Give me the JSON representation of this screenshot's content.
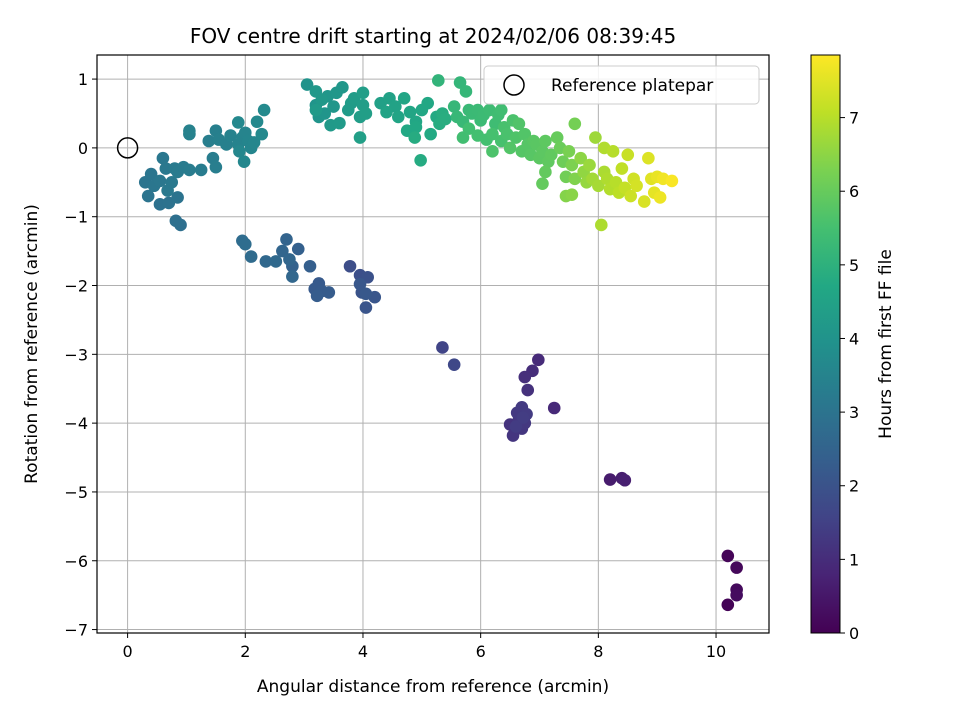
{
  "chart_data": {
    "type": "scatter",
    "title": "FOV centre drift starting at 2024/02/06 08:39:45",
    "xlabel": "Angular distance from reference (arcmin)",
    "ylabel": "Rotation from reference (arcmin)",
    "xlim": [
      -0.52,
      10.9
    ],
    "ylim": [
      -7.05,
      1.35
    ],
    "xticks": [
      0,
      2,
      4,
      6,
      8,
      10
    ],
    "yticks": [
      -7,
      -6,
      -5,
      -4,
      -3,
      -2,
      -1,
      0,
      1
    ],
    "grid": true,
    "legend": {
      "position": "top-right",
      "entries": [
        "Reference platepar"
      ]
    },
    "reference_point": {
      "x": 0,
      "y": 0
    },
    "colorbar": {
      "label": "Hours from first FF file",
      "range": [
        0,
        7.85
      ],
      "ticks": [
        0,
        1,
        2,
        3,
        4,
        5,
        6,
        7
      ],
      "colormap": "viridis"
    },
    "series": [
      {
        "points": [
          [
            10.2,
            -6.64,
            0.05
          ],
          [
            10.2,
            -5.93,
            0.1
          ],
          [
            10.35,
            -6.1,
            0.15
          ],
          [
            10.35,
            -6.42,
            0.2
          ],
          [
            10.35,
            -6.5,
            0.25
          ],
          [
            8.2,
            -4.82,
            0.6
          ],
          [
            8.4,
            -4.8,
            0.65
          ],
          [
            8.45,
            -4.83,
            0.7
          ],
          [
            7.25,
            -3.78,
            0.9
          ],
          [
            6.98,
            -3.08,
            0.95
          ],
          [
            6.88,
            -3.24,
            1.0
          ],
          [
            6.75,
            -3.33,
            1.05
          ],
          [
            6.8,
            -3.52,
            1.1
          ],
          [
            6.5,
            -4.02,
            1.15
          ],
          [
            6.55,
            -4.18,
            1.2
          ],
          [
            6.7,
            -4.08,
            1.22
          ],
          [
            6.65,
            -3.95,
            1.25
          ],
          [
            6.75,
            -4.0,
            1.28
          ],
          [
            6.62,
            -3.85,
            1.3
          ],
          [
            6.7,
            -3.77,
            1.32
          ],
          [
            6.78,
            -3.87,
            1.35
          ],
          [
            6.6,
            -4.05,
            1.38
          ],
          [
            6.72,
            -3.92,
            1.4
          ],
          [
            5.35,
            -2.9,
            1.6
          ],
          [
            5.55,
            -3.15,
            1.7
          ],
          [
            3.78,
            -1.72,
            1.85
          ],
          [
            3.95,
            -1.85,
            1.9
          ],
          [
            4.08,
            -1.88,
            1.95
          ],
          [
            3.98,
            -2.1,
            2.0
          ],
          [
            4.05,
            -2.32,
            2.05
          ],
          [
            4.2,
            -2.17,
            2.1
          ],
          [
            3.95,
            -1.98,
            2.12
          ],
          [
            4.05,
            -2.12,
            2.15
          ],
          [
            3.18,
            -2.05,
            2.2
          ],
          [
            3.25,
            -1.97,
            2.22
          ],
          [
            3.3,
            -2.08,
            2.25
          ],
          [
            3.42,
            -2.1,
            2.28
          ],
          [
            3.22,
            -2.15,
            2.3
          ],
          [
            3.1,
            -1.72,
            2.35
          ],
          [
            2.9,
            -1.47,
            2.4
          ],
          [
            2.8,
            -1.72,
            2.45
          ],
          [
            2.7,
            -1.33,
            2.5
          ],
          [
            2.63,
            -1.5,
            2.55
          ],
          [
            2.75,
            -1.62,
            2.58
          ],
          [
            2.8,
            -1.87,
            2.6
          ],
          [
            2.35,
            -1.65,
            2.65
          ],
          [
            2.52,
            -1.65,
            2.68
          ],
          [
            2.1,
            -1.58,
            2.72
          ],
          [
            1.95,
            -1.35,
            2.75
          ],
          [
            2.0,
            -1.4,
            2.78
          ],
          [
            0.9,
            -1.12,
            2.85
          ],
          [
            0.82,
            -1.06,
            2.88
          ],
          [
            0.55,
            -0.82,
            2.92
          ],
          [
            0.7,
            -0.8,
            2.95
          ],
          [
            0.85,
            -0.72,
            2.98
          ],
          [
            0.3,
            -0.5,
            3.0
          ],
          [
            0.35,
            -0.7,
            3.02
          ],
          [
            0.4,
            -0.38,
            3.05
          ],
          [
            0.45,
            -0.55,
            3.08
          ],
          [
            0.55,
            -0.48,
            3.1
          ],
          [
            0.6,
            -0.15,
            3.12
          ],
          [
            0.65,
            -0.3,
            3.14
          ],
          [
            0.68,
            -0.62,
            3.16
          ],
          [
            0.75,
            -0.5,
            3.18
          ],
          [
            0.8,
            -0.3,
            3.2
          ],
          [
            0.85,
            -0.35,
            3.22
          ],
          [
            0.95,
            -0.28,
            3.24
          ],
          [
            1.05,
            -0.32,
            3.26
          ],
          [
            1.25,
            -0.32,
            3.28
          ],
          [
            1.45,
            -0.15,
            3.3
          ],
          [
            1.5,
            -0.28,
            3.32
          ],
          [
            1.38,
            0.1,
            3.34
          ],
          [
            1.5,
            0.25,
            3.36
          ],
          [
            1.55,
            0.12,
            3.38
          ],
          [
            1.68,
            0.05,
            3.4
          ],
          [
            1.05,
            0.2,
            3.42
          ],
          [
            1.05,
            0.25,
            3.44
          ],
          [
            1.75,
            0.18,
            3.46
          ],
          [
            1.88,
            0.05,
            3.48
          ],
          [
            1.95,
            0.15,
            3.5
          ],
          [
            2.0,
            0.22,
            3.52
          ],
          [
            2.05,
            0.1,
            3.54
          ],
          [
            2.1,
            0.0,
            3.56
          ],
          [
            2.15,
            0.08,
            3.58
          ],
          [
            1.9,
            -0.05,
            3.6
          ],
          [
            1.98,
            -0.2,
            3.62
          ],
          [
            1.88,
            0.37,
            3.64
          ],
          [
            2.2,
            0.38,
            3.66
          ],
          [
            2.28,
            0.2,
            3.68
          ],
          [
            2.32,
            0.55,
            3.7
          ],
          [
            3.05,
            0.92,
            4.0
          ],
          [
            3.2,
            0.62,
            4.02
          ],
          [
            3.25,
            0.45,
            4.04
          ],
          [
            3.35,
            0.5,
            4.06
          ],
          [
            3.4,
            0.75,
            4.08
          ],
          [
            3.5,
            0.6,
            4.1
          ],
          [
            3.55,
            0.8,
            4.12
          ],
          [
            3.65,
            0.88,
            4.14
          ],
          [
            3.2,
            0.82,
            4.16
          ],
          [
            3.3,
            0.7,
            4.18
          ],
          [
            3.45,
            0.33,
            4.2
          ],
          [
            3.2,
            0.55,
            4.22
          ],
          [
            3.6,
            0.36,
            4.24
          ],
          [
            3.75,
            0.55,
            4.26
          ],
          [
            3.8,
            0.65,
            4.28
          ],
          [
            3.85,
            0.72,
            4.3
          ],
          [
            3.95,
            0.45,
            4.32
          ],
          [
            4.0,
            0.62,
            4.34
          ],
          [
            4.0,
            0.8,
            4.36
          ],
          [
            4.05,
            0.5,
            4.38
          ],
          [
            3.95,
            0.15,
            4.4
          ],
          [
            4.3,
            0.65,
            4.44
          ],
          [
            4.45,
            0.72,
            4.48
          ],
          [
            4.55,
            0.6,
            4.52
          ],
          [
            4.4,
            0.52,
            4.55
          ],
          [
            4.6,
            0.45,
            4.58
          ],
          [
            4.7,
            0.72,
            4.6
          ],
          [
            4.8,
            0.52,
            4.62
          ],
          [
            4.9,
            0.38,
            4.64
          ],
          [
            5.0,
            0.55,
            4.66
          ],
          [
            5.1,
            0.65,
            4.68
          ],
          [
            4.75,
            0.25,
            4.7
          ],
          [
            4.9,
            0.3,
            4.72
          ],
          [
            5.15,
            0.2,
            4.74
          ],
          [
            5.25,
            0.45,
            4.76
          ],
          [
            4.98,
            -0.18,
            4.8
          ],
          [
            4.88,
            0.15,
            4.82
          ],
          [
            5.3,
            0.35,
            4.84
          ],
          [
            5.35,
            0.5,
            4.86
          ],
          [
            5.4,
            0.42,
            4.88
          ],
          [
            5.28,
            0.98,
            5.1
          ],
          [
            5.65,
            0.95,
            5.15
          ],
          [
            5.75,
            0.82,
            5.18
          ],
          [
            5.55,
            0.6,
            5.2
          ],
          [
            5.6,
            0.45,
            5.22
          ],
          [
            5.7,
            0.38,
            5.24
          ],
          [
            5.8,
            0.55,
            5.26
          ],
          [
            5.85,
            0.5,
            5.28
          ],
          [
            5.95,
            0.55,
            5.3
          ],
          [
            6.0,
            0.4,
            5.32
          ],
          [
            6.05,
            0.48,
            5.34
          ],
          [
            6.15,
            0.55,
            5.36
          ],
          [
            6.25,
            0.35,
            5.38
          ],
          [
            6.3,
            0.48,
            5.4
          ],
          [
            6.35,
            0.55,
            5.42
          ],
          [
            5.7,
            0.15,
            5.44
          ],
          [
            5.8,
            0.28,
            5.46
          ],
          [
            5.95,
            0.18,
            5.48
          ],
          [
            6.1,
            0.12,
            5.5
          ],
          [
            6.2,
            0.2,
            5.52
          ],
          [
            6.35,
            0.1,
            5.54
          ],
          [
            6.4,
            0.3,
            5.56
          ],
          [
            6.45,
            0.2,
            5.58
          ],
          [
            6.55,
            0.4,
            5.6
          ],
          [
            6.2,
            -0.05,
            5.62
          ],
          [
            6.6,
            0.15,
            5.66
          ],
          [
            6.65,
            0.35,
            5.68
          ],
          [
            6.75,
            0.2,
            5.7
          ],
          [
            6.5,
            0.0,
            5.72
          ],
          [
            6.7,
            -0.05,
            5.74
          ],
          [
            6.8,
            0.05,
            5.76
          ],
          [
            6.85,
            -0.1,
            5.78
          ],
          [
            6.9,
            0.1,
            5.8
          ],
          [
            6.95,
            0.05,
            5.82
          ],
          [
            7.0,
            -0.15,
            5.84
          ],
          [
            7.05,
            -0.05,
            5.86
          ],
          [
            7.1,
            0.1,
            5.88
          ],
          [
            7.15,
            -0.2,
            5.9
          ],
          [
            7.2,
            -0.1,
            5.92
          ],
          [
            7.1,
            -0.35,
            5.94
          ],
          [
            7.05,
            -0.52,
            5.96
          ],
          [
            7.3,
            0.15,
            6.0
          ],
          [
            7.35,
            0.0,
            6.05
          ],
          [
            7.4,
            -0.2,
            6.1
          ],
          [
            7.45,
            -0.42,
            6.15
          ],
          [
            7.6,
            0.35,
            6.2
          ],
          [
            7.5,
            -0.05,
            6.25
          ],
          [
            7.55,
            -0.25,
            6.3
          ],
          [
            7.6,
            -0.45,
            6.35
          ],
          [
            7.45,
            -0.7,
            6.4
          ],
          [
            7.55,
            -0.68,
            6.45
          ],
          [
            7.7,
            -0.15,
            6.5
          ],
          [
            7.75,
            -0.35,
            6.55
          ],
          [
            7.8,
            -0.5,
            6.6
          ],
          [
            7.85,
            -0.25,
            6.65
          ],
          [
            7.95,
            0.15,
            6.7
          ],
          [
            7.9,
            -0.45,
            6.75
          ],
          [
            8.0,
            -0.55,
            6.8
          ],
          [
            8.1,
            -0.35,
            6.85
          ],
          [
            8.05,
            -1.12,
            6.88
          ],
          [
            8.15,
            -0.45,
            6.9
          ],
          [
            8.1,
            0.0,
            6.92
          ],
          [
            8.2,
            -0.6,
            6.95
          ],
          [
            8.25,
            -0.05,
            6.98
          ],
          [
            8.3,
            -0.5,
            7.0
          ],
          [
            8.35,
            -0.65,
            7.05
          ],
          [
            8.4,
            -0.3,
            7.1
          ],
          [
            8.45,
            -0.58,
            7.15
          ],
          [
            8.5,
            -0.1,
            7.2
          ],
          [
            8.55,
            -0.7,
            7.25
          ],
          [
            8.6,
            -0.45,
            7.3
          ],
          [
            8.65,
            -0.55,
            7.35
          ],
          [
            8.78,
            -0.78,
            7.4
          ],
          [
            8.85,
            -0.15,
            7.45
          ],
          [
            8.9,
            -0.45,
            7.5
          ],
          [
            8.95,
            -0.65,
            7.55
          ],
          [
            9.0,
            -0.42,
            7.6
          ],
          [
            9.05,
            -0.72,
            7.65
          ],
          [
            9.1,
            -0.45,
            7.7
          ],
          [
            9.25,
            -0.48,
            7.8
          ]
        ]
      }
    ]
  }
}
